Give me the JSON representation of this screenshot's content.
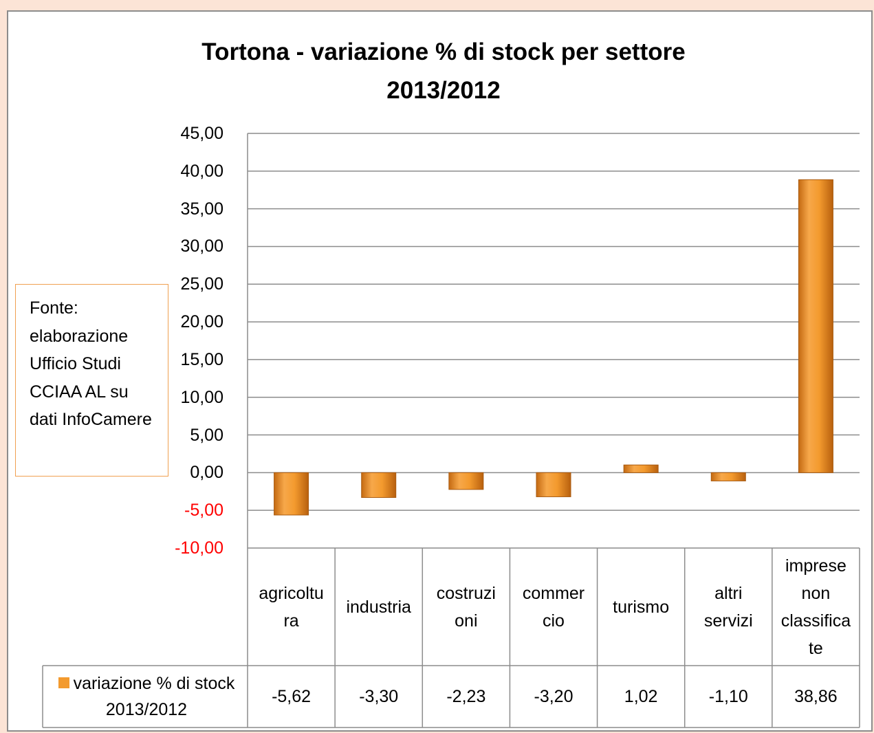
{
  "chart_data": {
    "type": "bar",
    "title": "Tortona - variazione % di stock per settore 2013/2012",
    "categories": [
      "agricoltu\nra",
      "industria",
      "costruzi\noni",
      "commer\ncio",
      "turismo",
      "altri\nservizi",
      "imprese\nnon\nclassifica\nte"
    ],
    "series": [
      {
        "name": "variazione % di stock 2013/2012",
        "color": "#f39a2e",
        "values": [
          -5.62,
          -3.3,
          -2.23,
          -3.2,
          1.02,
          -1.1,
          38.86
        ],
        "value_labels": [
          "-5,62",
          "-3,30",
          "-2,23",
          "-3,20",
          "1,02",
          "-1,10",
          "38,86"
        ]
      }
    ],
    "ylim": [
      -10,
      45
    ],
    "yticks": [
      {
        "value": 45,
        "label": "45,00"
      },
      {
        "value": 40,
        "label": "40,00"
      },
      {
        "value": 35,
        "label": "35,00"
      },
      {
        "value": 30,
        "label": "30,00"
      },
      {
        "value": 25,
        "label": "25,00"
      },
      {
        "value": 20,
        "label": "20,00"
      },
      {
        "value": 15,
        "label": "15,00"
      },
      {
        "value": 10,
        "label": "10,00"
      },
      {
        "value": 5,
        "label": "5,00"
      },
      {
        "value": 0,
        "label": "0,00"
      },
      {
        "value": -5,
        "label": "-5,00"
      },
      {
        "value": -10,
        "label": "-10,00"
      }
    ],
    "negative_tick_color": "#ff0000",
    "grid": true,
    "annotation": "Fonte: elaborazione Ufficio Studi CCIAA AL su dati InfoCamere"
  }
}
